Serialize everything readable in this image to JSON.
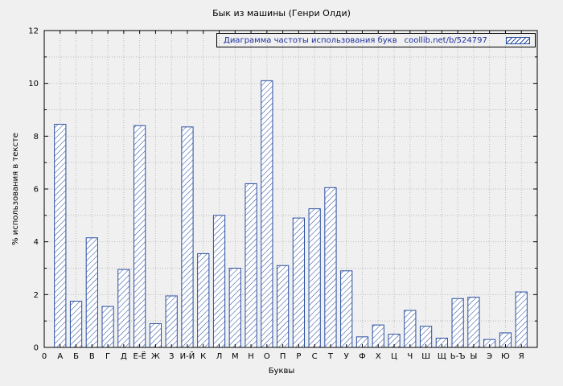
{
  "chart_data": {
    "type": "bar",
    "title": "Бык из машины (Генри Олди)",
    "xlabel": "Буквы",
    "ylabel": "% использования в тексте",
    "ylim": [
      0,
      12
    ],
    "yticks": [
      0,
      2,
      4,
      6,
      8,
      10,
      12
    ],
    "origin_tick": "0",
    "grid": true,
    "legend": {
      "label": "Диаграмма частоты использования букв",
      "source": "coollib.net/b/524797",
      "position": "top-right",
      "swatch": "hatched-bar-sample"
    },
    "categories": [
      "А",
      "Б",
      "В",
      "Г",
      "Д",
      "Е-Ё",
      "Ж",
      "З",
      "И-Й",
      "К",
      "Л",
      "М",
      "Н",
      "О",
      "П",
      "Р",
      "С",
      "Т",
      "У",
      "Ф",
      "Х",
      "Ц",
      "Ч",
      "Ш",
      "Щ",
      "Ь-Ъ",
      "Ы",
      "Э",
      "Ю",
      "Я"
    ],
    "values": [
      8.45,
      1.75,
      4.15,
      1.55,
      2.95,
      8.4,
      0.9,
      1.95,
      8.35,
      3.55,
      5.0,
      3.0,
      6.2,
      10.1,
      3.1,
      4.9,
      5.25,
      6.05,
      2.9,
      0.4,
      0.85,
      0.5,
      1.4,
      0.8,
      0.35,
      1.85,
      1.9,
      0.3,
      0.55,
      2.1
    ],
    "colors": {
      "bar": "#2b4fa2",
      "bar_fill": "#ffffff",
      "legend_text": "#20309c",
      "grid": "#bbbbbb",
      "frame": "#000000",
      "background": "#f0f0f0",
      "text": "#000000"
    }
  }
}
